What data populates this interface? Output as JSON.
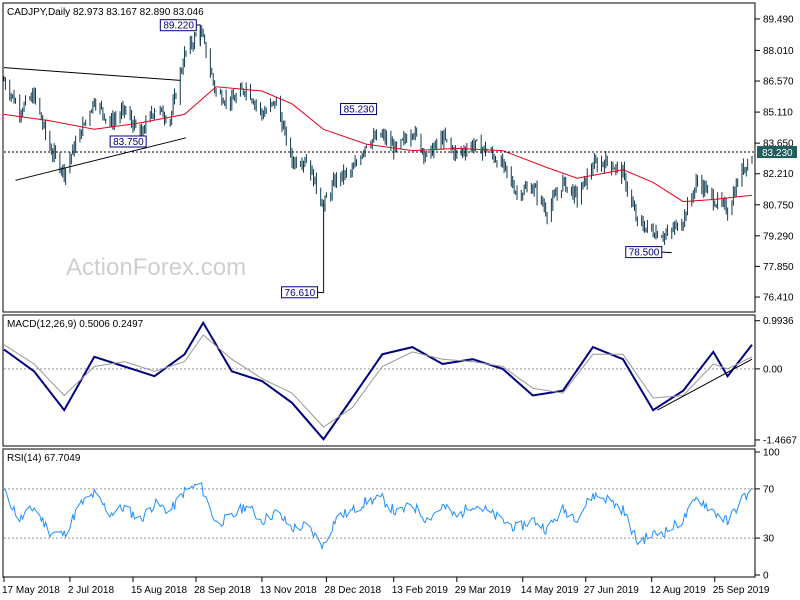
{
  "chart_data": [
    {
      "type": "candlestick",
      "header": "CADJPY,Daily  82.973 83.167 82.890 83.046",
      "symbol": "CADJPY",
      "timeframe": "Daily",
      "ohlc": {
        "open": 82.973,
        "high": 83.167,
        "low": 82.89,
        "close": 83.046
      },
      "ylim": [
        75.8,
        90.1
      ],
      "y_ticks": [
        "89.490",
        "88.010",
        "86.570",
        "85.110",
        "83.650",
        "82.210",
        "80.750",
        "79.290",
        "77.850",
        "76.410"
      ],
      "current_price_label": "83.230",
      "current_price": 83.23,
      "moving_average_color": "#e8001c",
      "candle_color": "#0f3a52",
      "annotations": [
        {
          "text": "89.220",
          "x_date": "2018-10-01",
          "y": 89.22
        },
        {
          "text": "83.750",
          "x_date": "2018-08-20",
          "y": 83.75
        },
        {
          "text": "85.230",
          "x_date": "2019-02-01",
          "y": 85.23
        },
        {
          "text": "76.610",
          "x_date": "2018-12-26",
          "y": 76.61
        },
        {
          "text": "78.500",
          "x_date": "2019-08-26",
          "y": 78.5
        }
      ],
      "trendlines": [
        {
          "from": [
            "2018-05-17",
            87.2
          ],
          "to": [
            "2018-09-17",
            86.6
          ]
        },
        {
          "from": [
            "2018-05-25",
            81.9
          ],
          "to": [
            "2018-09-21",
            83.9
          ]
        }
      ],
      "series_close": [
        [
          "2018-05-17",
          86.6
        ],
        [
          "2018-05-28",
          85.2
        ],
        [
          "2018-06-07",
          85.9
        ],
        [
          "2018-06-18",
          83.4
        ],
        [
          "2018-06-28",
          82.3
        ],
        [
          "2018-07-09",
          84.1
        ],
        [
          "2018-07-19",
          85.7
        ],
        [
          "2018-07-30",
          84.6
        ],
        [
          "2018-08-09",
          85.2
        ],
        [
          "2018-08-20",
          84.0
        ],
        [
          "2018-08-30",
          85.3
        ],
        [
          "2018-09-10",
          84.8
        ],
        [
          "2018-09-20",
          87.8
        ],
        [
          "2018-10-01",
          89.0
        ],
        [
          "2018-10-12",
          86.0
        ],
        [
          "2018-10-23",
          85.6
        ],
        [
          "2018-11-02",
          86.3
        ],
        [
          "2018-11-13",
          85.0
        ],
        [
          "2018-11-23",
          85.6
        ],
        [
          "2018-12-04",
          82.8
        ],
        [
          "2018-12-14",
          82.9
        ],
        [
          "2018-12-26",
          80.7
        ],
        [
          "2019-01-04",
          82.0
        ],
        [
          "2019-01-15",
          82.3
        ],
        [
          "2019-01-25",
          83.7
        ],
        [
          "2019-02-05",
          84.0
        ],
        [
          "2019-02-15",
          83.3
        ],
        [
          "2019-02-26",
          84.3
        ],
        [
          "2019-03-08",
          83.0
        ],
        [
          "2019-03-19",
          83.9
        ],
        [
          "2019-03-29",
          83.1
        ],
        [
          "2019-04-09",
          83.6
        ],
        [
          "2019-04-19",
          83.3
        ],
        [
          "2019-04-30",
          82.6
        ],
        [
          "2019-05-10",
          81.3
        ],
        [
          "2019-05-21",
          81.6
        ],
        [
          "2019-05-31",
          80.4
        ],
        [
          "2019-06-11",
          81.8
        ],
        [
          "2019-06-21",
          81.1
        ],
        [
          "2019-07-02",
          82.6
        ],
        [
          "2019-07-12",
          82.8
        ],
        [
          "2019-07-23",
          82.2
        ],
        [
          "2019-08-02",
          79.9
        ],
        [
          "2019-08-13",
          79.5
        ],
        [
          "2019-08-23",
          79.3
        ],
        [
          "2019-09-03",
          80.1
        ],
        [
          "2019-09-13",
          81.9
        ],
        [
          "2019-09-24",
          81.0
        ],
        [
          "2019-10-04",
          80.5
        ],
        [
          "2019-10-14",
          82.4
        ],
        [
          "2019-10-21",
          83.05
        ]
      ],
      "series_ma": [
        [
          "2018-05-17",
          85.0
        ],
        [
          "2018-06-18",
          84.7
        ],
        [
          "2018-07-19",
          84.3
        ],
        [
          "2018-08-20",
          84.6
        ],
        [
          "2018-09-20",
          85.0
        ],
        [
          "2018-10-12",
          86.3
        ],
        [
          "2018-11-13",
          86.1
        ],
        [
          "2018-12-04",
          85.5
        ],
        [
          "2018-12-26",
          84.3
        ],
        [
          "2019-01-25",
          83.6
        ],
        [
          "2019-02-26",
          83.3
        ],
        [
          "2019-03-29",
          83.4
        ],
        [
          "2019-04-30",
          83.3
        ],
        [
          "2019-05-31",
          82.5
        ],
        [
          "2019-06-21",
          82.0
        ],
        [
          "2019-07-23",
          82.4
        ],
        [
          "2019-08-13",
          81.8
        ],
        [
          "2019-09-03",
          80.9
        ],
        [
          "2019-09-24",
          81.0
        ],
        [
          "2019-10-21",
          81.2
        ]
      ]
    },
    {
      "type": "line",
      "header": "MACD(12,26,9) 0.5006 0.2497",
      "indicator": "MACD(12,26,9)",
      "values": [
        0.5006,
        0.2497
      ],
      "ylim": [
        -1.55,
        1.05
      ],
      "y_ticks": [
        "0.9936",
        "0.00",
        "-1.4667"
      ],
      "macd_color": "#000080",
      "signal_color": "#999999",
      "series": [
        {
          "name": "MACD",
          "points": [
            [
              "2018-05-17",
              0.4
            ],
            [
              "2018-06-07",
              -0.05
            ],
            [
              "2018-06-28",
              -0.85
            ],
            [
              "2018-07-19",
              0.25
            ],
            [
              "2018-08-09",
              0.05
            ],
            [
              "2018-08-30",
              -0.15
            ],
            [
              "2018-09-20",
              0.3
            ],
            [
              "2018-10-03",
              0.95
            ],
            [
              "2018-10-23",
              -0.05
            ],
            [
              "2018-11-13",
              -0.25
            ],
            [
              "2018-12-04",
              -0.7
            ],
            [
              "2018-12-26",
              -1.45
            ],
            [
              "2019-01-15",
              -0.6
            ],
            [
              "2019-02-05",
              0.3
            ],
            [
              "2019-02-26",
              0.45
            ],
            [
              "2019-03-19",
              0.1
            ],
            [
              "2019-04-09",
              0.2
            ],
            [
              "2019-04-30",
              0.0
            ],
            [
              "2019-05-21",
              -0.55
            ],
            [
              "2019-06-11",
              -0.45
            ],
            [
              "2019-07-02",
              0.45
            ],
            [
              "2019-07-23",
              0.2
            ],
            [
              "2019-08-13",
              -0.85
            ],
            [
              "2019-09-03",
              -0.45
            ],
            [
              "2019-09-24",
              0.35
            ],
            [
              "2019-10-04",
              -0.15
            ],
            [
              "2019-10-21",
              0.5
            ]
          ]
        },
        {
          "name": "Signal",
          "points": [
            [
              "2018-05-17",
              0.5
            ],
            [
              "2018-06-07",
              0.1
            ],
            [
              "2018-06-28",
              -0.55
            ],
            [
              "2018-07-19",
              0.05
            ],
            [
              "2018-08-09",
              0.15
            ],
            [
              "2018-08-30",
              -0.05
            ],
            [
              "2018-09-20",
              0.15
            ],
            [
              "2018-10-03",
              0.7
            ],
            [
              "2018-10-23",
              0.2
            ],
            [
              "2018-11-13",
              -0.2
            ],
            [
              "2018-12-04",
              -0.5
            ],
            [
              "2018-12-26",
              -1.2
            ],
            [
              "2019-01-15",
              -0.8
            ],
            [
              "2019-02-05",
              0.05
            ],
            [
              "2019-02-26",
              0.35
            ],
            [
              "2019-03-19",
              0.2
            ],
            [
              "2019-04-09",
              0.15
            ],
            [
              "2019-04-30",
              0.05
            ],
            [
              "2019-05-21",
              -0.4
            ],
            [
              "2019-06-11",
              -0.5
            ],
            [
              "2019-07-02",
              0.3
            ],
            [
              "2019-07-23",
              0.3
            ],
            [
              "2019-08-13",
              -0.6
            ],
            [
              "2019-09-03",
              -0.55
            ],
            [
              "2019-09-24",
              0.1
            ],
            [
              "2019-10-04",
              0.0
            ],
            [
              "2019-10-21",
              0.25
            ]
          ]
        }
      ],
      "trendline": {
        "from": [
          "2019-08-16",
          -0.85
        ],
        "to": [
          "2019-10-21",
          0.2
        ]
      }
    },
    {
      "type": "line",
      "header": "RSI(14) 67.7049",
      "indicator": "RSI(14)",
      "value": 67.7049,
      "ylim": [
        0,
        100
      ],
      "y_ticks": [
        "100",
        "70",
        "30",
        "0"
      ],
      "line_color": "#1e90ff",
      "series": [
        {
          "name": "RSI",
          "points": [
            [
              "2018-05-17",
              68
            ],
            [
              "2018-05-28",
              45
            ],
            [
              "2018-06-07",
              55
            ],
            [
              "2018-06-18",
              35
            ],
            [
              "2018-06-28",
              33
            ],
            [
              "2018-07-09",
              57
            ],
            [
              "2018-07-19",
              66
            ],
            [
              "2018-07-30",
              50
            ],
            [
              "2018-08-09",
              55
            ],
            [
              "2018-08-20",
              45
            ],
            [
              "2018-08-30",
              58
            ],
            [
              "2018-09-10",
              52
            ],
            [
              "2018-09-20",
              68
            ],
            [
              "2018-10-01",
              74
            ],
            [
              "2018-10-12",
              42
            ],
            [
              "2018-10-23",
              47
            ],
            [
              "2018-11-02",
              57
            ],
            [
              "2018-11-13",
              44
            ],
            [
              "2018-11-23",
              51
            ],
            [
              "2018-12-04",
              38
            ],
            [
              "2018-12-14",
              40
            ],
            [
              "2018-12-26",
              24
            ],
            [
              "2019-01-04",
              47
            ],
            [
              "2019-01-15",
              52
            ],
            [
              "2019-01-25",
              60
            ],
            [
              "2019-02-05",
              62
            ],
            [
              "2019-02-15",
              50
            ],
            [
              "2019-02-26",
              57
            ],
            [
              "2019-03-08",
              45
            ],
            [
              "2019-03-19",
              56
            ],
            [
              "2019-03-29",
              47
            ],
            [
              "2019-04-09",
              58
            ],
            [
              "2019-04-19",
              52
            ],
            [
              "2019-04-30",
              44
            ],
            [
              "2019-05-10",
              38
            ],
            [
              "2019-05-21",
              45
            ],
            [
              "2019-05-31",
              37
            ],
            [
              "2019-06-11",
              53
            ],
            [
              "2019-06-21",
              47
            ],
            [
              "2019-07-02",
              65
            ],
            [
              "2019-07-12",
              62
            ],
            [
              "2019-07-23",
              53
            ],
            [
              "2019-08-02",
              27
            ],
            [
              "2019-08-13",
              33
            ],
            [
              "2019-08-23",
              36
            ],
            [
              "2019-09-03",
              45
            ],
            [
              "2019-09-13",
              63
            ],
            [
              "2019-09-24",
              52
            ],
            [
              "2019-10-04",
              43
            ],
            [
              "2019-10-14",
              62
            ],
            [
              "2019-10-21",
              67.7
            ]
          ]
        }
      ]
    }
  ],
  "x_axis": {
    "labels": [
      {
        "text": "17 May 2018",
        "date": "2018-05-17"
      },
      {
        "text": "2 Jul 2018",
        "date": "2018-07-02"
      },
      {
        "text": "15 Aug 2018",
        "date": "2018-08-15"
      },
      {
        "text": "28 Sep 2018",
        "date": "2018-09-28"
      },
      {
        "text": "13 Nov 2018",
        "date": "2018-11-13"
      },
      {
        "text": "28 Dec 2018",
        "date": "2018-12-28"
      },
      {
        "text": "13 Feb 2019",
        "date": "2019-02-13"
      },
      {
        "text": "29 Mar 2019",
        "date": "2019-03-29"
      },
      {
        "text": "14 May 2019",
        "date": "2019-05-14"
      },
      {
        "text": "27 Jun 2019",
        "date": "2019-06-27"
      },
      {
        "text": "12 Aug 2019",
        "date": "2019-08-12"
      },
      {
        "text": "25 Sep 2019",
        "date": "2019-09-25"
      }
    ]
  },
  "watermark": "ActionForex.com"
}
